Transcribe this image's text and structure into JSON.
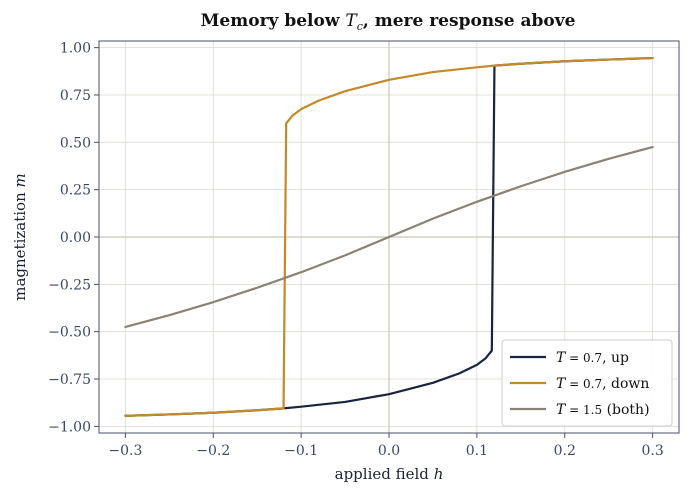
{
  "chart_data": {
    "type": "line",
    "title_main": "Memory below ",
    "title_var": "T",
    "title_sub": "c",
    "title_rest": ", mere response above",
    "xlabel_main": "applied field ",
    "xlabel_var": "h",
    "ylabel_main": "magnetization ",
    "ylabel_var": "m",
    "xlim": [
      -0.33,
      0.33
    ],
    "ylim": [
      -1.035,
      1.035
    ],
    "xticks": [
      -0.3,
      -0.2,
      -0.1,
      0.0,
      0.1,
      0.2,
      0.3
    ],
    "xtick_labels": [
      "−0.3",
      "−0.2",
      "−0.1",
      "0.0",
      "0.1",
      "0.2",
      "0.3"
    ],
    "yticks": [
      -1.0,
      -0.75,
      -0.5,
      -0.25,
      0.0,
      0.25,
      0.5,
      0.75,
      1.0
    ],
    "ytick_labels": [
      "−1.00",
      "−0.75",
      "−0.50",
      "−0.25",
      "0.00",
      "0.25",
      "0.50",
      "0.75",
      "1.00"
    ],
    "grid": true,
    "legend_position": "bottom-right",
    "series": [
      {
        "name": "up",
        "legend_var": "T",
        "legend_eq": " = 0.7",
        "legend_suffix": ", up",
        "color": "#1a2440",
        "points": [
          [
            -0.3,
            -0.944
          ],
          [
            -0.25,
            -0.937
          ],
          [
            -0.2,
            -0.928
          ],
          [
            -0.15,
            -0.915
          ],
          [
            -0.12,
            -0.905
          ],
          [
            -0.1,
            -0.896
          ],
          [
            -0.05,
            -0.871
          ],
          [
            0.0,
            -0.83
          ],
          [
            0.05,
            -0.77
          ],
          [
            0.08,
            -0.72
          ],
          [
            0.1,
            -0.675
          ],
          [
            0.11,
            -0.64
          ],
          [
            0.117,
            -0.6
          ],
          [
            0.12,
            0.905
          ],
          [
            0.15,
            0.915
          ],
          [
            0.2,
            0.928
          ],
          [
            0.25,
            0.937
          ],
          [
            0.3,
            0.945
          ]
        ]
      },
      {
        "name": "down",
        "legend_var": "T",
        "legend_eq": " = 0.7",
        "legend_suffix": ", down",
        "color": "#c28a2a",
        "points": [
          [
            0.3,
            0.945
          ],
          [
            0.25,
            0.937
          ],
          [
            0.2,
            0.928
          ],
          [
            0.15,
            0.915
          ],
          [
            0.12,
            0.905
          ],
          [
            0.1,
            0.896
          ],
          [
            0.05,
            0.871
          ],
          [
            0.0,
            0.83
          ],
          [
            -0.05,
            0.77
          ],
          [
            -0.08,
            0.72
          ],
          [
            -0.1,
            0.675
          ],
          [
            -0.11,
            0.64
          ],
          [
            -0.117,
            0.6
          ],
          [
            -0.12,
            -0.905
          ],
          [
            -0.15,
            -0.915
          ],
          [
            -0.2,
            -0.928
          ],
          [
            -0.25,
            -0.937
          ],
          [
            -0.3,
            -0.944
          ]
        ]
      },
      {
        "name": "both",
        "legend_var": "T",
        "legend_eq": " = 1.5",
        "legend_suffix": " (both)",
        "color": "#8a8272",
        "points": [
          [
            -0.3,
            -0.475
          ],
          [
            -0.25,
            -0.413
          ],
          [
            -0.2,
            -0.344
          ],
          [
            -0.15,
            -0.268
          ],
          [
            -0.1,
            -0.186
          ],
          [
            -0.05,
            -0.097
          ],
          [
            0.0,
            0.0
          ],
          [
            0.05,
            0.097
          ],
          [
            0.1,
            0.186
          ],
          [
            0.15,
            0.268
          ],
          [
            0.2,
            0.344
          ],
          [
            0.25,
            0.413
          ],
          [
            0.3,
            0.475
          ]
        ]
      }
    ]
  },
  "colors": {
    "axes_edge": "#4a5068",
    "grid": "#dcdad2",
    "zero_line": "#cbc6b6"
  }
}
